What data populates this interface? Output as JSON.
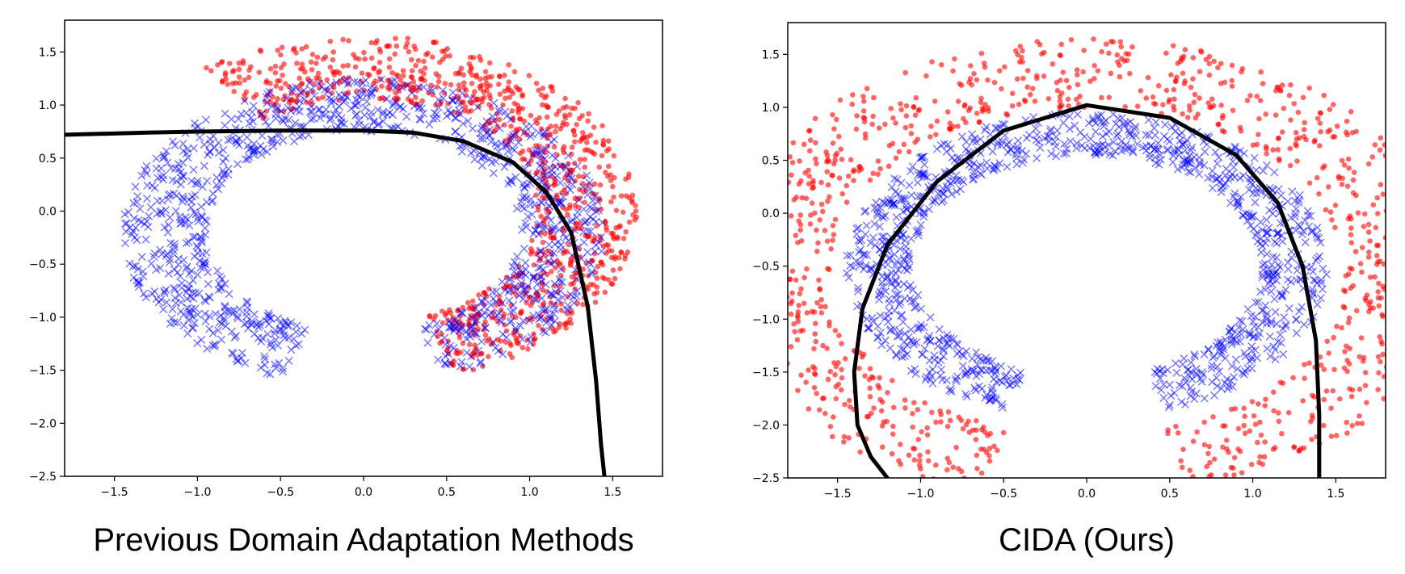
{
  "chart_data": [
    {
      "type": "scatter",
      "caption": "Previous Domain Adaptation Methods",
      "xlim": [
        -1.8,
        1.8
      ],
      "ylim": [
        -2.5,
        1.8
      ],
      "xticks": [
        -1.5,
        -1.0,
        -0.5,
        0.0,
        0.5,
        1.0,
        1.5
      ],
      "xtick_labels": [
        "−1.5",
        "−1.0",
        "−0.5",
        "0.0",
        "0.5",
        "1.0",
        "1.5"
      ],
      "yticks": [
        1.5,
        1.0,
        0.5,
        0.0,
        -0.5,
        -1.0,
        -1.5,
        -2.0,
        -2.5
      ],
      "ytick_labels": [
        "1.5",
        "1.0",
        "0.5",
        "0.0",
        "−0.5",
        "−1.0",
        "−1.5",
        "−2.0",
        "−2.5"
      ],
      "grid": false,
      "series": [
        {
          "marker": "dot",
          "color": "#ff0000",
          "ring": {
            "cx": 0.0,
            "cy": 0.0,
            "r_inner": 1.05,
            "r_outer": 1.65,
            "angle_from_deg": -70,
            "angle_to_deg": 125
          },
          "n": 950
        },
        {
          "marker": "x",
          "color": "#0000ff",
          "ring": {
            "cx": 0.0,
            "cy": -0.2,
            "r_inner": 0.95,
            "r_outer": 1.45,
            "angle_from_deg": -70,
            "angle_to_deg": 250
          },
          "n": 1050
        }
      ],
      "boundary": {
        "color": "#000000",
        "x": [
          -1.8,
          -1.3,
          -1.0,
          -0.5,
          0.0,
          0.3,
          0.6,
          0.9,
          1.1,
          1.25,
          1.35,
          1.4,
          1.43,
          1.45
        ],
        "y": [
          0.72,
          0.74,
          0.75,
          0.76,
          0.76,
          0.74,
          0.66,
          0.46,
          0.18,
          -0.2,
          -0.9,
          -1.6,
          -2.2,
          -2.5
        ]
      }
    },
    {
      "type": "scatter",
      "caption": "CIDA (Ours)",
      "xlim": [
        -1.8,
        1.8
      ],
      "ylim": [
        -2.5,
        1.8
      ],
      "xticks": [
        -1.5,
        -1.0,
        -0.5,
        0.0,
        0.5,
        1.0,
        1.5
      ],
      "xtick_labels": [
        "−1.5",
        "−1.0",
        "−0.5",
        "0.0",
        "0.5",
        "1.0",
        "1.5"
      ],
      "yticks": [
        1.5,
        1.0,
        0.5,
        0.0,
        -0.5,
        -1.0,
        -1.5,
        -2.0,
        -2.5
      ],
      "ytick_labels": [
        "1.5",
        "1.0",
        "0.5",
        "0.0",
        "−0.5",
        "−1.0",
        "−1.5",
        "−2.0",
        "−2.5"
      ],
      "grid": false,
      "series": [
        {
          "marker": "dot",
          "color": "#ff0000",
          "ring": {
            "cx": 0.0,
            "cy": -0.55,
            "r_inner": 1.55,
            "r_outer": 2.2,
            "angle_from_deg": -73,
            "angle_to_deg": 253
          },
          "n": 1050
        },
        {
          "marker": "x",
          "color": "#0000ff",
          "ring": {
            "cx": 0.0,
            "cy": -0.5,
            "r_inner": 1.05,
            "r_outer": 1.45,
            "angle_from_deg": -70,
            "angle_to_deg": 250
          },
          "n": 1050
        }
      ],
      "boundary": {
        "color": "#000000",
        "x": [
          -1.2,
          -1.3,
          -1.38,
          -1.4,
          -1.35,
          -1.2,
          -0.9,
          -0.5,
          0.0,
          0.5,
          0.9,
          1.15,
          1.3,
          1.38,
          1.4,
          1.4
        ],
        "y": [
          -2.5,
          -2.3,
          -2.0,
          -1.5,
          -0.9,
          -0.3,
          0.3,
          0.78,
          1.02,
          0.9,
          0.55,
          0.1,
          -0.5,
          -1.2,
          -1.9,
          -2.5
        ]
      }
    }
  ],
  "figure_colors": {
    "background": "#ffffff",
    "axes": "#000000"
  }
}
